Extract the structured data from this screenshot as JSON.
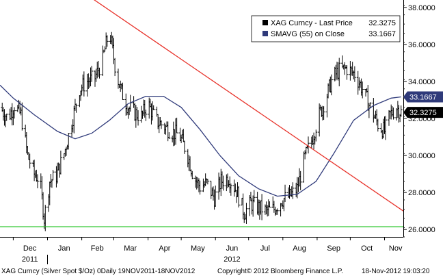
{
  "chart_data": {
    "type": "bar",
    "subtype": "ohlc-daily-with-moving-average",
    "colors": {
      "background": "#ffffff",
      "price_bars": "#000000",
      "sma": "#2f3a7a",
      "trendline": "#e8332b",
      "support": "#22c422",
      "last_price_tag": "#000000",
      "sma_tag": "#2f3a7a"
    },
    "y_axis": {
      "position": "right",
      "range": [
        25.6,
        38.4
      ],
      "ticks": [
        26,
        28,
        30,
        32,
        34,
        36,
        38
      ],
      "tick_labels": [
        "26.0000",
        "28.0000",
        "30.0000",
        "32.0000",
        "34.0000",
        "36.0000",
        "38.0000"
      ]
    },
    "x_axis": {
      "range": [
        "2011-11-19",
        "2012-11-18"
      ],
      "month_labels": [
        {
          "date": "2011-12-16",
          "label": "Dec"
        },
        {
          "date": "2012-01-16",
          "label": "Jan"
        },
        {
          "date": "2012-02-15",
          "label": "Feb"
        },
        {
          "date": "2012-03-16",
          "label": "Mar"
        },
        {
          "date": "2012-04-16",
          "label": "Apr"
        },
        {
          "date": "2012-05-16",
          "label": "May"
        },
        {
          "date": "2012-06-16",
          "label": "Jun"
        },
        {
          "date": "2012-07-16",
          "label": "Jul"
        },
        {
          "date": "2012-08-16",
          "label": "Aug"
        },
        {
          "date": "2012-09-16",
          "label": "Sep"
        },
        {
          "date": "2012-10-16",
          "label": "Oct"
        },
        {
          "date": "2012-11-11",
          "label": "Nov"
        }
      ],
      "year_labels": [
        {
          "date": "2011-12-16",
          "label": "2011"
        },
        {
          "date": "2012-06-16",
          "label": "2012"
        }
      ]
    },
    "legend": {
      "placement": "top-right",
      "items": [
        {
          "label": "XAG Curncy - Last Price",
          "value": "32.3275",
          "color": "#000000"
        },
        {
          "label": "SMAVG (55) on Close",
          "value": "33.1667",
          "color": "#2f3a7a"
        }
      ]
    },
    "price_tags": [
      {
        "value": 33.1667,
        "label": "33.1667",
        "color": "#2f3a7a"
      },
      {
        "value": 32.3275,
        "label": "32.3275",
        "color": "#000000"
      }
    ],
    "trendline": {
      "points": [
        {
          "x": "2012-02-10",
          "y": 38.5
        },
        {
          "x": "2012-11-18",
          "y": 27.0
        }
      ]
    },
    "support_level": {
      "y": 26.15
    },
    "price_path": [
      {
        "x": "2011-11-19",
        "y": 32.6
      },
      {
        "x": "2011-11-26",
        "y": 32.0
      },
      {
        "x": "2011-12-02",
        "y": 32.7
      },
      {
        "x": "2011-12-08",
        "y": 32.2
      },
      {
        "x": "2011-12-14",
        "y": 30.0
      },
      {
        "x": "2011-12-20",
        "y": 29.0
      },
      {
        "x": "2011-12-25",
        "y": 28.7
      },
      {
        "x": "2011-12-29",
        "y": 26.6
      },
      {
        "x": "2012-01-03",
        "y": 28.6
      },
      {
        "x": "2012-01-09",
        "y": 28.9
      },
      {
        "x": "2012-01-16",
        "y": 30.1
      },
      {
        "x": "2012-01-23",
        "y": 31.8
      },
      {
        "x": "2012-01-30",
        "y": 33.6
      },
      {
        "x": "2012-02-06",
        "y": 34.0
      },
      {
        "x": "2012-02-13",
        "y": 34.2
      },
      {
        "x": "2012-02-20",
        "y": 35.2
      },
      {
        "x": "2012-02-26",
        "y": 36.8
      },
      {
        "x": "2012-03-03",
        "y": 34.5
      },
      {
        "x": "2012-03-08",
        "y": 33.4
      },
      {
        "x": "2012-03-14",
        "y": 32.6
      },
      {
        "x": "2012-03-20",
        "y": 32.3
      },
      {
        "x": "2012-03-26",
        "y": 32.1
      },
      {
        "x": "2012-04-01",
        "y": 32.8
      },
      {
        "x": "2012-04-08",
        "y": 31.9
      },
      {
        "x": "2012-04-15",
        "y": 31.6
      },
      {
        "x": "2012-04-22",
        "y": 31.3
      },
      {
        "x": "2012-04-29",
        "y": 31.1
      },
      {
        "x": "2012-05-06",
        "y": 30.2
      },
      {
        "x": "2012-05-12",
        "y": 28.9
      },
      {
        "x": "2012-05-18",
        "y": 28.3
      },
      {
        "x": "2012-05-24",
        "y": 28.5
      },
      {
        "x": "2012-05-31",
        "y": 27.7
      },
      {
        "x": "2012-06-06",
        "y": 28.6
      },
      {
        "x": "2012-06-13",
        "y": 28.8
      },
      {
        "x": "2012-06-20",
        "y": 28.1
      },
      {
        "x": "2012-06-27",
        "y": 26.9
      },
      {
        "x": "2012-07-03",
        "y": 27.4
      },
      {
        "x": "2012-07-10",
        "y": 27.2
      },
      {
        "x": "2012-07-17",
        "y": 27.0
      },
      {
        "x": "2012-07-24",
        "y": 27.1
      },
      {
        "x": "2012-07-31",
        "y": 27.6
      },
      {
        "x": "2012-08-07",
        "y": 27.8
      },
      {
        "x": "2012-08-14",
        "y": 28.2
      },
      {
        "x": "2012-08-21",
        "y": 29.9
      },
      {
        "x": "2012-08-27",
        "y": 30.8
      },
      {
        "x": "2012-09-03",
        "y": 32.2
      },
      {
        "x": "2012-09-09",
        "y": 33.1
      },
      {
        "x": "2012-09-15",
        "y": 34.2
      },
      {
        "x": "2012-09-21",
        "y": 34.6
      },
      {
        "x": "2012-09-28",
        "y": 34.7
      },
      {
        "x": "2012-10-05",
        "y": 34.4
      },
      {
        "x": "2012-10-12",
        "y": 33.6
      },
      {
        "x": "2012-10-19",
        "y": 32.6
      },
      {
        "x": "2012-10-26",
        "y": 31.7
      },
      {
        "x": "2012-11-01",
        "y": 31.3
      },
      {
        "x": "2012-11-06",
        "y": 32.2
      },
      {
        "x": "2012-11-12",
        "y": 32.6
      },
      {
        "x": "2012-11-16",
        "y": 32.3275
      }
    ],
    "sma_path": [
      {
        "x": "2011-11-19",
        "y": 33.8
      },
      {
        "x": "2011-12-01",
        "y": 33.1
      },
      {
        "x": "2011-12-20",
        "y": 32.2
      },
      {
        "x": "2012-01-10",
        "y": 31.3
      },
      {
        "x": "2012-01-26",
        "y": 30.9
      },
      {
        "x": "2012-02-10",
        "y": 31.2
      },
      {
        "x": "2012-02-26",
        "y": 31.9
      },
      {
        "x": "2012-03-14",
        "y": 32.8
      },
      {
        "x": "2012-03-30",
        "y": 33.2
      },
      {
        "x": "2012-04-15",
        "y": 33.2
      },
      {
        "x": "2012-05-01",
        "y": 32.6
      },
      {
        "x": "2012-05-18",
        "y": 31.4
      },
      {
        "x": "2012-06-05",
        "y": 30.0
      },
      {
        "x": "2012-06-22",
        "y": 28.9
      },
      {
        "x": "2012-07-10",
        "y": 28.2
      },
      {
        "x": "2012-07-27",
        "y": 27.8
      },
      {
        "x": "2012-08-14",
        "y": 27.9
      },
      {
        "x": "2012-08-31",
        "y": 28.6
      },
      {
        "x": "2012-09-16",
        "y": 30.1
      },
      {
        "x": "2012-10-04",
        "y": 31.9
      },
      {
        "x": "2012-10-22",
        "y": 32.7
      },
      {
        "x": "2012-11-07",
        "y": 33.1
      },
      {
        "x": "2012-11-16",
        "y": 33.1667
      }
    ]
  },
  "footer": {
    "left": "XAG Curncy (Silver Spot  $/Oz) 0Daily 19NOV2011-18NOV2012",
    "center": "Copyright© 2012 Bloomberg Finance L.P.",
    "right": "18-Nov-2012 19:03:20"
  }
}
